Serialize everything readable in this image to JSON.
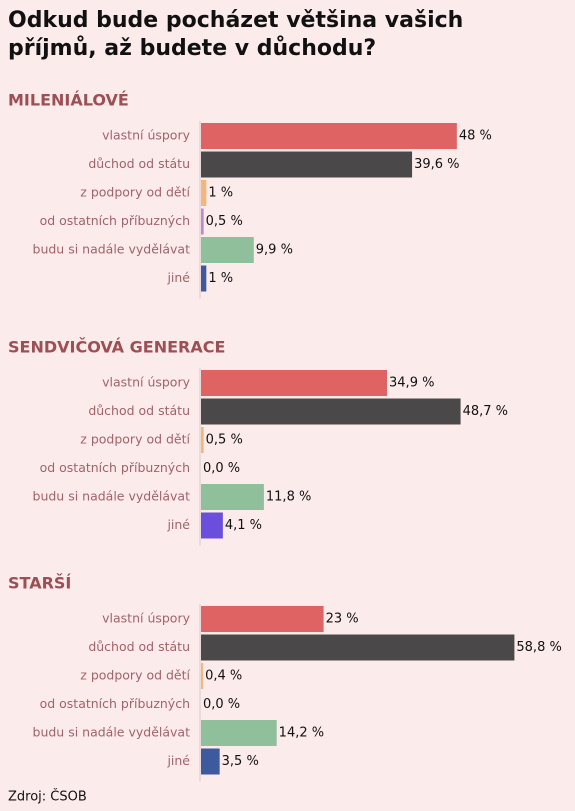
{
  "header": {
    "title_lines": [
      "Odkud bude pocházet většina vašich",
      "příjmů, až budete v důchodu?"
    ]
  },
  "chart_data": [
    {
      "type": "bar",
      "orientation": "horizontal",
      "title": "MILENIÁLOVÉ",
      "categories": [
        "vlastní úspory",
        "důchod od státu",
        "z podpory od dětí",
        "od ostatních příbuzných",
        "budu si nadále vydělávat",
        "jiné"
      ],
      "values": [
        48,
        39.6,
        1,
        0.5,
        9.9,
        1
      ],
      "value_labels": [
        "48 %",
        "39,6 %",
        "1 %",
        "0,5 %",
        "9,9 %",
        "1 %"
      ],
      "colors": [
        "#e06363",
        "#4a4848",
        "#f2b77a",
        "#b98bcc",
        "#90bf9c",
        "#3e5a9e"
      ]
    },
    {
      "type": "bar",
      "orientation": "horizontal",
      "title": "SENDVIČOVÁ GENERACE",
      "categories": [
        "vlastní úspory",
        "důchod od státu",
        "z podpory od dětí",
        "od ostatních příbuzných",
        "budu si nadále vydělávat",
        "jiné"
      ],
      "values": [
        34.9,
        48.7,
        0.5,
        0,
        11.8,
        4.1
      ],
      "value_labels": [
        "34,9 %",
        "48,7 %",
        "0,5 %",
        "0,0 %",
        "11,8 %",
        "4,1 %"
      ],
      "colors": [
        "#e06363",
        "#4a4848",
        "#f2b77a",
        "#b98bcc",
        "#90bf9c",
        "#6a4fdc"
      ]
    },
    {
      "type": "bar",
      "orientation": "horizontal",
      "title": "STARŠÍ",
      "categories": [
        "vlastní úspory",
        "důchod od státu",
        "z podpory od dětí",
        "od ostatních příbuzných",
        "budu si nadále vydělávat",
        "jiné"
      ],
      "values": [
        23,
        58.8,
        0.4,
        0,
        14.2,
        3.5
      ],
      "value_labels": [
        "23 %",
        "58,8 %",
        "0,4 %",
        "0,0 %",
        "14,2 %",
        "3,5 %"
      ],
      "colors": [
        "#e06363",
        "#4a4848",
        "#f2b77a",
        "#b98bcc",
        "#90bf9c",
        "#3e5a9e"
      ]
    }
  ],
  "source": "Zdroj: ČSOB"
}
